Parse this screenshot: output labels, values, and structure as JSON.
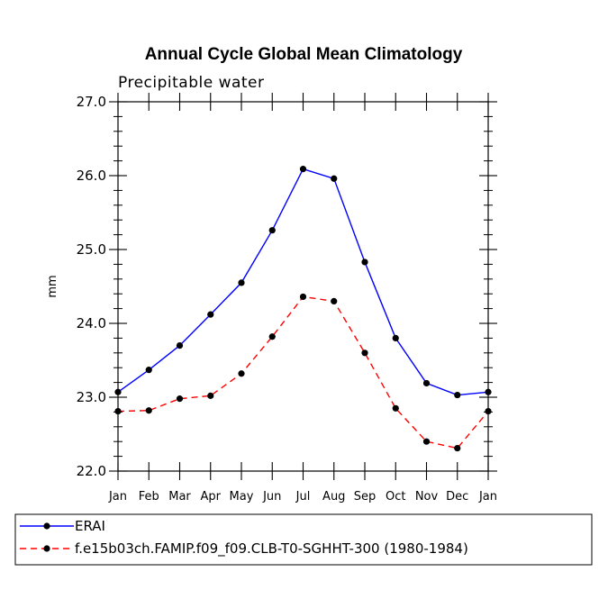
{
  "chart_data": {
    "type": "line",
    "title": "Annual Cycle Global Mean Climatology",
    "subtitle": "Precipitable water",
    "xlabel": "",
    "ylabel": "mm",
    "categories": [
      "Jan",
      "Feb",
      "Mar",
      "Apr",
      "May",
      "Jun",
      "Jul",
      "Aug",
      "Sep",
      "Oct",
      "Nov",
      "Dec",
      "Jan"
    ],
    "ylim": [
      22.0,
      27.0
    ],
    "yticks": [
      "22.0",
      "23.0",
      "24.0",
      "25.0",
      "26.0",
      "27.0"
    ],
    "grid": false,
    "legend_position": "bottom",
    "series": [
      {
        "name": "ERAI",
        "color": "#0000ff",
        "style": "solid",
        "values": [
          23.07,
          23.37,
          23.7,
          24.12,
          24.55,
          25.26,
          26.09,
          25.96,
          24.83,
          23.8,
          23.19,
          23.03,
          23.07
        ]
      },
      {
        "name": "f.e15b03ch.FAMIP.f09_f09.CLB-T0-SGHHT-300 (1980-1984)",
        "color": "#ff0000",
        "style": "dashed",
        "values": [
          22.81,
          22.82,
          22.98,
          23.02,
          23.32,
          23.82,
          24.36,
          24.3,
          23.6,
          22.85,
          22.4,
          22.31,
          22.81
        ]
      }
    ]
  }
}
